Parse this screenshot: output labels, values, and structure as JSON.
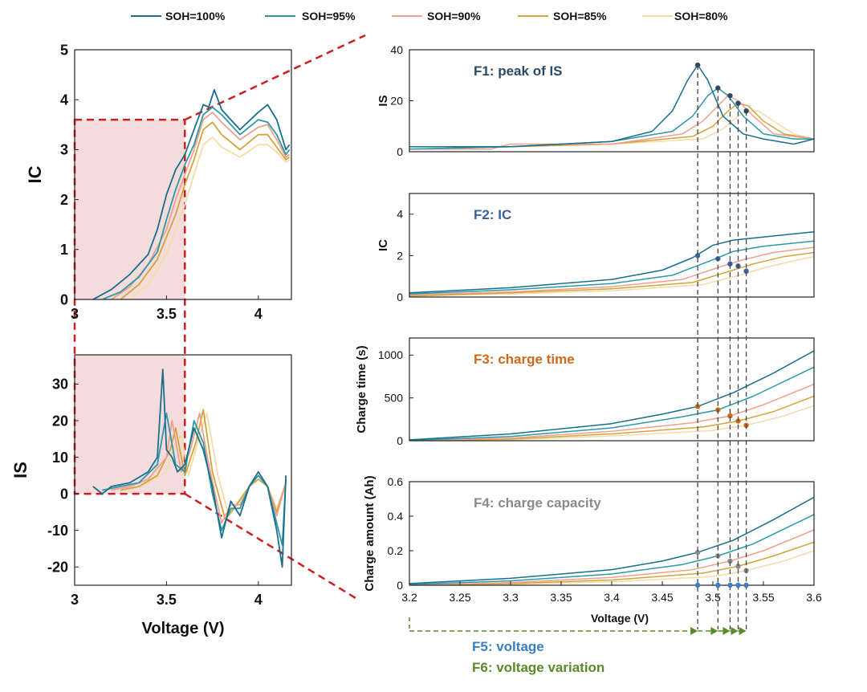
{
  "legend": {
    "items": [
      "SOH=100%",
      "SOH=95%",
      "SOH=90%",
      "SOH=85%",
      "SOH=80%"
    ],
    "colors": [
      "#1a6e8e",
      "#2a9aa8",
      "#f0a08c",
      "#d4a43a",
      "#f2dca8"
    ]
  },
  "colors": {
    "highlight_box": "#cc1f1f",
    "highlight_fill": "#f5dcdc",
    "guide_line": "#444444",
    "f1": "#2b4a66",
    "f2": "#3a62a0",
    "f3": "#cc6a1a",
    "f4": "#8a8a8a",
    "f5": "#3a7fc4",
    "f6": "#5a8a2a",
    "axis": "#222222"
  },
  "chart_data": [
    {
      "id": "left-ic",
      "type": "line",
      "title": "",
      "xlabel": "",
      "ylabel": "IC",
      "xlim": [
        3,
        4.18
      ],
      "ylim": [
        0,
        5
      ],
      "x_ticks": [
        "3",
        "3.5",
        "4"
      ],
      "y_ticks": [
        "0",
        "1",
        "2",
        "3",
        "4",
        "5"
      ],
      "series": [
        {
          "name": "SOH=100%",
          "x": [
            3.1,
            3.2,
            3.3,
            3.4,
            3.45,
            3.5,
            3.55,
            3.6,
            3.65,
            3.7,
            3.73,
            3.76,
            3.8,
            3.9,
            4.0,
            4.05,
            4.1,
            4.15,
            4.17
          ],
          "y": [
            0,
            0.2,
            0.5,
            0.9,
            1.4,
            2.1,
            2.6,
            2.9,
            3.4,
            3.9,
            3.85,
            4.2,
            3.8,
            3.4,
            3.75,
            3.9,
            3.6,
            3.0,
            3.1
          ]
        },
        {
          "name": "SOH=95%",
          "x": [
            3.15,
            3.25,
            3.35,
            3.45,
            3.5,
            3.55,
            3.6,
            3.65,
            3.7,
            3.75,
            3.8,
            3.9,
            4.0,
            4.05,
            4.1,
            4.15,
            4.17
          ],
          "y": [
            0,
            0.15,
            0.45,
            0.95,
            1.6,
            2.2,
            2.7,
            3.1,
            3.7,
            3.85,
            3.7,
            3.3,
            3.6,
            3.55,
            3.3,
            2.9,
            3.0
          ]
        },
        {
          "name": "SOH=90%",
          "x": [
            3.2,
            3.3,
            3.4,
            3.5,
            3.55,
            3.6,
            3.65,
            3.7,
            3.75,
            3.8,
            3.9,
            4.0,
            4.05,
            4.1,
            4.15,
            4.17
          ],
          "y": [
            0,
            0.25,
            0.7,
            1.4,
            2.0,
            2.5,
            3.0,
            3.6,
            3.75,
            3.55,
            3.2,
            3.45,
            3.5,
            3.2,
            2.85,
            2.9
          ]
        },
        {
          "name": "SOH=85%",
          "x": [
            3.25,
            3.35,
            3.45,
            3.55,
            3.6,
            3.65,
            3.7,
            3.75,
            3.8,
            3.9,
            4.0,
            4.05,
            4.1,
            4.15,
            4.17
          ],
          "y": [
            0,
            0.3,
            0.8,
            1.7,
            2.3,
            2.8,
            3.4,
            3.55,
            3.3,
            3.0,
            3.3,
            3.3,
            3.05,
            2.8,
            2.85
          ]
        },
        {
          "name": "SOH=80%",
          "x": [
            3.3,
            3.4,
            3.5,
            3.6,
            3.65,
            3.7,
            3.75,
            3.8,
            3.9,
            4.0,
            4.05,
            4.1,
            4.15,
            4.17
          ],
          "y": [
            0,
            0.3,
            0.9,
            1.9,
            2.5,
            3.1,
            3.25,
            3.05,
            2.85,
            3.1,
            3.1,
            2.95,
            2.75,
            2.8
          ]
        }
      ]
    },
    {
      "id": "left-is",
      "type": "line",
      "title": "",
      "xlabel": "Voltage (V)",
      "ylabel": "IS",
      "xlim": [
        3,
        4.18
      ],
      "ylim": [
        -25,
        38
      ],
      "x_ticks": [
        "3",
        "3.5",
        "4"
      ],
      "y_ticks": [
        "-20",
        "-10",
        "0",
        "10",
        "20",
        "30"
      ],
      "series": [
        {
          "name": "SOH=100%",
          "x": [
            3.1,
            3.15,
            3.2,
            3.3,
            3.4,
            3.45,
            3.48,
            3.5,
            3.53,
            3.56,
            3.6,
            3.65,
            3.7,
            3.75,
            3.8,
            3.85,
            3.9,
            3.95,
            4.0,
            4.05,
            4.1,
            4.13,
            4.15
          ],
          "y": [
            2,
            0,
            2,
            3,
            6,
            10,
            34,
            12,
            10,
            6,
            8,
            18,
            12,
            2,
            -12,
            -2,
            -6,
            2,
            6,
            2,
            -10,
            -20,
            5
          ]
        },
        {
          "name": "SOH=95%",
          "x": [
            3.15,
            3.25,
            3.35,
            3.45,
            3.5,
            3.55,
            3.6,
            3.65,
            3.7,
            3.75,
            3.8,
            3.85,
            3.9,
            3.95,
            4.0,
            4.05,
            4.1,
            4.13,
            4.15
          ],
          "y": [
            1,
            2,
            3,
            8,
            22,
            8,
            6,
            20,
            14,
            0,
            -10,
            -4,
            -4,
            2,
            5,
            2,
            -8,
            -14,
            4
          ]
        },
        {
          "name": "SOH=90%",
          "x": [
            3.2,
            3.3,
            3.4,
            3.5,
            3.53,
            3.58,
            3.63,
            3.68,
            3.73,
            3.8,
            3.85,
            3.9,
            3.95,
            4.0,
            4.05,
            4.1,
            4.15
          ],
          "y": [
            1,
            2,
            4,
            10,
            20,
            6,
            12,
            22,
            8,
            -8,
            -3,
            -3,
            2,
            5,
            2,
            -6,
            3
          ]
        },
        {
          "name": "SOH=85%",
          "x": [
            3.25,
            3.35,
            3.45,
            3.52,
            3.55,
            3.6,
            3.66,
            3.7,
            3.75,
            3.82,
            3.88,
            3.95,
            4.0,
            4.05,
            4.1,
            4.15
          ],
          "y": [
            1,
            2,
            5,
            12,
            18,
            5,
            14,
            23,
            6,
            -7,
            -3,
            2,
            4,
            2,
            -5,
            3
          ]
        },
        {
          "name": "SOH=80%",
          "x": [
            3.3,
            3.4,
            3.5,
            3.55,
            3.58,
            3.62,
            3.68,
            3.72,
            3.78,
            3.84,
            3.9,
            3.95,
            4.0,
            4.05,
            4.1,
            4.15
          ],
          "y": [
            1,
            3,
            6,
            14,
            16,
            5,
            16,
            22,
            5,
            -6,
            -2,
            2,
            4,
            2,
            -4,
            3
          ]
        }
      ]
    },
    {
      "id": "f1-is",
      "type": "line",
      "title": "F1: peak of IS",
      "xlabel": "",
      "ylabel": "IS",
      "xlim": [
        3.2,
        3.6
      ],
      "ylim": [
        0,
        40
      ],
      "y_ticks": [
        "0",
        "20",
        "40"
      ],
      "series": [
        {
          "name": "SOH=100%",
          "x": [
            3.2,
            3.3,
            3.4,
            3.44,
            3.46,
            3.475,
            3.485,
            3.495,
            3.51,
            3.53,
            3.55,
            3.58,
            3.6
          ],
          "y": [
            2,
            2,
            4,
            8,
            16,
            28,
            34,
            28,
            14,
            7,
            5,
            3,
            5
          ]
        },
        {
          "name": "SOH=95%",
          "x": [
            3.2,
            3.3,
            3.4,
            3.46,
            3.48,
            3.495,
            3.505,
            3.515,
            3.53,
            3.55,
            3.58,
            3.6
          ],
          "y": [
            1,
            2,
            4,
            8,
            14,
            22,
            25,
            22,
            14,
            7,
            5,
            5
          ]
        },
        {
          "name": "SOH=90%",
          "x": [
            3.2,
            3.28,
            3.3,
            3.4,
            3.47,
            3.49,
            3.505,
            3.515,
            3.525,
            3.54,
            3.56,
            3.6
          ],
          "y": [
            1,
            1,
            3,
            3,
            7,
            12,
            18,
            22,
            20,
            14,
            7,
            5
          ]
        },
        {
          "name": "SOH=85%",
          "x": [
            3.2,
            3.3,
            3.4,
            3.48,
            3.5,
            3.515,
            3.525,
            3.535,
            3.55,
            3.57,
            3.6
          ],
          "y": [
            1,
            2,
            3,
            6,
            10,
            16,
            19,
            18,
            12,
            7,
            5
          ]
        },
        {
          "name": "SOH=80%",
          "x": [
            3.2,
            3.3,
            3.4,
            3.49,
            3.51,
            3.525,
            3.535,
            3.545,
            3.56,
            3.58,
            3.6
          ],
          "y": [
            1,
            2,
            3,
            5,
            9,
            14,
            16,
            16,
            12,
            7,
            5
          ]
        }
      ],
      "markers": {
        "x": [
          3.485,
          3.505,
          3.517,
          3.525,
          3.533
        ],
        "y": [
          34,
          25,
          22,
          19,
          16
        ]
      }
    },
    {
      "id": "f2-ic",
      "type": "line",
      "title": "F2: IC",
      "xlabel": "",
      "ylabel": "IC",
      "xlim": [
        3.2,
        3.6
      ],
      "ylim": [
        0,
        5
      ],
      "y_ticks": [
        "0",
        "2",
        "4"
      ],
      "series": [
        {
          "name": "SOH=100%",
          "x": [
            3.2,
            3.3,
            3.4,
            3.45,
            3.48,
            3.5,
            3.52,
            3.55,
            3.6
          ],
          "y": [
            0.2,
            0.45,
            0.85,
            1.3,
            1.9,
            2.5,
            2.75,
            2.9,
            3.15
          ]
        },
        {
          "name": "SOH=95%",
          "x": [
            3.2,
            3.3,
            3.4,
            3.46,
            3.5,
            3.52,
            3.55,
            3.6
          ],
          "y": [
            0.15,
            0.35,
            0.65,
            1.05,
            1.8,
            2.2,
            2.45,
            2.7
          ]
        },
        {
          "name": "SOH=90%",
          "x": [
            3.2,
            3.3,
            3.4,
            3.47,
            3.51,
            3.53,
            3.56,
            3.6
          ],
          "y": [
            0.1,
            0.25,
            0.5,
            0.85,
            1.5,
            1.8,
            2.15,
            2.4
          ]
        },
        {
          "name": "SOH=85%",
          "x": [
            3.2,
            3.3,
            3.4,
            3.48,
            3.52,
            3.54,
            3.57,
            3.6
          ],
          "y": [
            0.05,
            0.2,
            0.4,
            0.7,
            1.3,
            1.6,
            1.95,
            2.15
          ]
        },
        {
          "name": "SOH=80%",
          "x": [
            3.2,
            3.3,
            3.4,
            3.49,
            3.53,
            3.55,
            3.58,
            3.6
          ],
          "y": [
            0.05,
            0.15,
            0.3,
            0.6,
            1.1,
            1.4,
            1.75,
            1.95
          ]
        }
      ],
      "markers": {
        "x": [
          3.485,
          3.505,
          3.517,
          3.525,
          3.533
        ],
        "y": [
          2.0,
          1.85,
          1.6,
          1.5,
          1.25
        ]
      }
    },
    {
      "id": "f3-time",
      "type": "line",
      "title": "F3: charge time",
      "xlabel": "",
      "ylabel": "Charge time (s)",
      "xlim": [
        3.2,
        3.6
      ],
      "ylim": [
        0,
        1200
      ],
      "y_ticks": [
        "0",
        "500",
        "1000"
      ],
      "series": [
        {
          "name": "SOH=100%",
          "x": [
            3.2,
            3.3,
            3.4,
            3.45,
            3.485,
            3.52,
            3.56,
            3.6
          ],
          "y": [
            10,
            80,
            200,
            310,
            400,
            560,
            790,
            1050
          ]
        },
        {
          "name": "SOH=95%",
          "x": [
            3.2,
            3.3,
            3.4,
            3.47,
            3.505,
            3.54,
            3.6
          ],
          "y": [
            5,
            50,
            150,
            280,
            360,
            520,
            860
          ]
        },
        {
          "name": "SOH=90%",
          "x": [
            3.2,
            3.3,
            3.4,
            3.48,
            3.517,
            3.55,
            3.6
          ],
          "y": [
            0,
            30,
            110,
            210,
            290,
            420,
            660
          ]
        },
        {
          "name": "SOH=85%",
          "x": [
            3.2,
            3.3,
            3.4,
            3.49,
            3.525,
            3.56,
            3.6
          ],
          "y": [
            0,
            20,
            80,
            160,
            230,
            340,
            520
          ]
        },
        {
          "name": "SOH=80%",
          "x": [
            3.2,
            3.3,
            3.4,
            3.5,
            3.533,
            3.57,
            3.6
          ],
          "y": [
            0,
            10,
            55,
            120,
            180,
            290,
            410
          ]
        }
      ],
      "markers": {
        "x": [
          3.485,
          3.505,
          3.517,
          3.525,
          3.533
        ],
        "y": [
          400,
          360,
          290,
          230,
          180
        ]
      }
    },
    {
      "id": "f4-capacity",
      "type": "line",
      "title": "F4: charge capacity",
      "xlabel": "Voltage (V)",
      "ylabel": "Charge amount (Ah)",
      "xlim": [
        3.2,
        3.6
      ],
      "ylim": [
        0,
        0.6
      ],
      "x_ticks": [
        "3.2",
        "3.25",
        "3.3",
        "3.35",
        "3.4",
        "3.45",
        "3.5",
        "3.55",
        "3.6"
      ],
      "y_ticks": [
        "0",
        "0.2",
        "0.4",
        "0.6"
      ],
      "series": [
        {
          "name": "SOH=100%",
          "x": [
            3.2,
            3.3,
            3.4,
            3.45,
            3.485,
            3.52,
            3.56,
            3.6
          ],
          "y": [
            0.01,
            0.04,
            0.09,
            0.14,
            0.19,
            0.26,
            0.38,
            0.51
          ]
        },
        {
          "name": "SOH=95%",
          "x": [
            3.2,
            3.3,
            3.4,
            3.47,
            3.505,
            3.54,
            3.6
          ],
          "y": [
            0.005,
            0.025,
            0.065,
            0.12,
            0.17,
            0.24,
            0.41
          ]
        },
        {
          "name": "SOH=90%",
          "x": [
            3.2,
            3.3,
            3.4,
            3.48,
            3.517,
            3.55,
            3.6
          ],
          "y": [
            0,
            0.015,
            0.045,
            0.09,
            0.14,
            0.2,
            0.32
          ]
        },
        {
          "name": "SOH=85%",
          "x": [
            3.2,
            3.3,
            3.4,
            3.49,
            3.525,
            3.56,
            3.6
          ],
          "y": [
            0,
            0.01,
            0.03,
            0.07,
            0.11,
            0.17,
            0.25
          ]
        },
        {
          "name": "SOH=80%",
          "x": [
            3.2,
            3.3,
            3.4,
            3.5,
            3.533,
            3.57,
            3.6
          ],
          "y": [
            0,
            0.005,
            0.02,
            0.05,
            0.085,
            0.14,
            0.2
          ]
        }
      ],
      "markers": {
        "x": [
          3.485,
          3.505,
          3.517,
          3.525,
          3.533
        ],
        "y": [
          0.19,
          0.17,
          0.14,
          0.11,
          0.085
        ]
      }
    }
  ],
  "annotations": {
    "f1_label": "F1: peak of IS",
    "f2_label": "F2: IC",
    "f3_label": "F3: charge time",
    "f4_label": "F4: charge capacity",
    "f5_label": "F5: voltage",
    "f6_label": "F6: voltage variation"
  }
}
